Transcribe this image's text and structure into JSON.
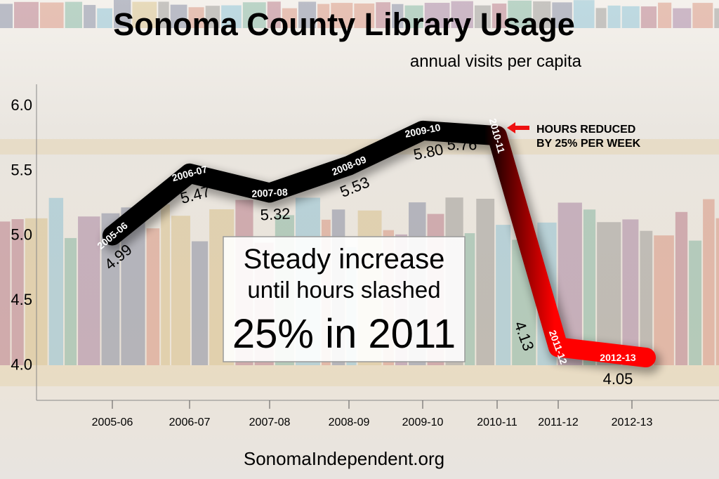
{
  "chart_data": {
    "type": "line",
    "title": "Sonoma County Library Usage",
    "subtitle": "annual visits per capita",
    "xlabel": "",
    "ylabel": "",
    "categories": [
      "2005-06",
      "2006-07",
      "2007-08",
      "2008-09",
      "2009-10",
      "2010-11",
      "2011-12",
      "2012-13"
    ],
    "series": [
      {
        "values": [
          4.99,
          5.47,
          5.32,
          5.53,
          5.8,
          5.76,
          4.13,
          4.05
        ]
      }
    ],
    "value_labels": [
      "4.99",
      "5.47",
      "5.32",
      "5.53",
      "5.80",
      "5.76",
      "4.13",
      "4.05"
    ],
    "y_ticks": [
      "4.0",
      "4.5",
      "5.0",
      "5.5",
      "6.0"
    ],
    "ylim": [
      3.72,
      6.2
    ],
    "grid": false,
    "colors": {
      "before_cut": "#000000",
      "after_cut": "#ff0000",
      "arrow": "#ee1111"
    },
    "annotations": {
      "arrow_note_line1": "HOURS REDUCED",
      "arrow_note_line2": "BY 25% PER WEEK",
      "box_line1": "Steady increase",
      "box_line2": "until hours slashed",
      "box_line3": "25% in 2011"
    },
    "source": "SonomaIndependent.org"
  }
}
